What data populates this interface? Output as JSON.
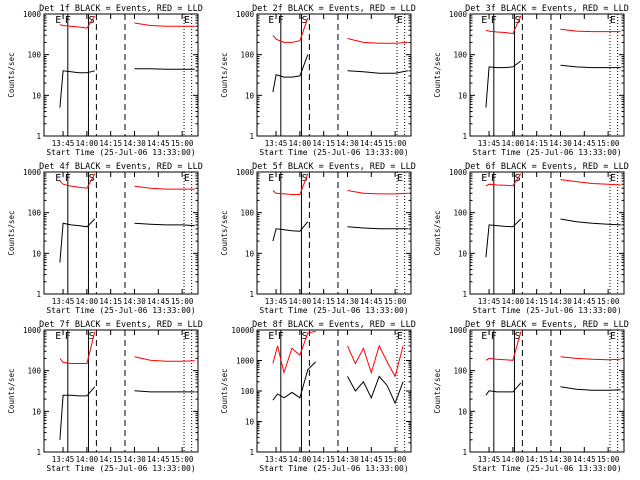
{
  "figure": {
    "xlabel": "Start Time (25-Jul-06 13:33:00)",
    "ylabel": "Counts/sec",
    "x_ticks": [
      "13:45",
      "14:00",
      "14:15",
      "14:30",
      "14:45",
      "15:00"
    ],
    "y_ticks_3dec": [
      "1",
      "10",
      "100",
      "1000"
    ],
    "y_ticks_4dec": [
      "1",
      "10",
      "100",
      "1000",
      "10000"
    ],
    "markers": [
      "E",
      "F",
      "S",
      "E"
    ],
    "colors": {
      "events": "#000000",
      "lld": "#ff0000"
    }
  },
  "chart_data": [
    {
      "type": "line",
      "title": "Det 1f BLACK = Events, RED = LLD",
      "ylim": [
        1,
        1000
      ],
      "yscale": "log",
      "xlim": [
        "13:33",
        "15:10"
      ],
      "series": [
        {
          "name": "Events",
          "x": [
            "13:43",
            "13:45",
            "13:50",
            "13:55",
            "14:00",
            "14:05",
            "14:24",
            "14:30",
            "14:40",
            "14:50",
            "15:00",
            "15:08"
          ],
          "values": [
            5,
            40,
            38,
            36,
            36,
            40,
            null,
            45,
            45,
            44,
            44,
            44
          ]
        },
        {
          "name": "LLD",
          "x": [
            "13:43",
            "13:45",
            "13:50",
            "13:55",
            "14:00",
            "14:05",
            "14:24",
            "14:30",
            "14:40",
            "14:50",
            "15:00",
            "15:08"
          ],
          "values": [
            550,
            520,
            500,
            480,
            450,
            900,
            null,
            600,
            520,
            500,
            500,
            500
          ]
        }
      ]
    },
    {
      "type": "line",
      "title": "Det 2f BLACK = Events, RED = LLD",
      "ylim": [
        1,
        1000
      ],
      "yscale": "log",
      "xlim": [
        "13:33",
        "15:10"
      ],
      "series": [
        {
          "name": "Events",
          "x": [
            "13:43",
            "13:45",
            "13:50",
            "13:55",
            "14:00",
            "14:05",
            "14:24",
            "14:30",
            "14:40",
            "14:50",
            "15:00",
            "15:08"
          ],
          "values": [
            12,
            32,
            28,
            28,
            30,
            100,
            null,
            40,
            38,
            35,
            35,
            40
          ]
        },
        {
          "name": "LLD",
          "x": [
            "13:43",
            "13:45",
            "13:50",
            "13:55",
            "14:00",
            "14:05",
            "14:24",
            "14:30",
            "14:40",
            "14:50",
            "15:00",
            "15:08"
          ],
          "values": [
            300,
            240,
            200,
            200,
            220,
            800,
            null,
            250,
            200,
            190,
            190,
            200
          ]
        }
      ]
    },
    {
      "type": "line",
      "title": "Det 3f BLACK = Events, RED = LLD",
      "ylim": [
        1,
        1000
      ],
      "yscale": "log",
      "xlim": [
        "13:33",
        "15:10"
      ],
      "series": [
        {
          "name": "Events",
          "x": [
            "13:43",
            "13:45",
            "13:50",
            "13:55",
            "14:00",
            "14:05",
            "14:24",
            "14:30",
            "14:40",
            "14:50",
            "15:00",
            "15:08"
          ],
          "values": [
            5,
            50,
            48,
            48,
            50,
            70,
            null,
            55,
            50,
            48,
            48,
            48
          ]
        },
        {
          "name": "LLD",
          "x": [
            "13:43",
            "13:45",
            "13:50",
            "13:55",
            "14:00",
            "14:05",
            "14:24",
            "14:30",
            "14:40",
            "14:50",
            "15:00",
            "15:08"
          ],
          "values": [
            400,
            380,
            360,
            350,
            330,
            900,
            null,
            420,
            380,
            370,
            370,
            370
          ]
        }
      ]
    },
    {
      "type": "line",
      "title": "Det 4f BLACK = Events, RED = LLD",
      "ylim": [
        1,
        1000
      ],
      "yscale": "log",
      "xlim": [
        "13:33",
        "15:10"
      ],
      "series": [
        {
          "name": "Events",
          "x": [
            "13:43",
            "13:45",
            "13:50",
            "13:55",
            "14:00",
            "14:05",
            "14:24",
            "14:30",
            "14:40",
            "14:50",
            "15:00",
            "15:08"
          ],
          "values": [
            6,
            55,
            50,
            48,
            45,
            70,
            null,
            55,
            52,
            50,
            50,
            48
          ]
        },
        {
          "name": "LLD",
          "x": [
            "13:43",
            "13:45",
            "13:50",
            "13:55",
            "14:00",
            "14:05",
            "14:24",
            "14:30",
            "14:40",
            "14:50",
            "15:00",
            "15:08"
          ],
          "values": [
            600,
            500,
            450,
            420,
            400,
            900,
            null,
            450,
            400,
            380,
            380,
            380
          ]
        }
      ]
    },
    {
      "type": "line",
      "title": "Det 5f BLACK = Events, RED = LLD",
      "ylim": [
        1,
        1000
      ],
      "yscale": "log",
      "xlim": [
        "13:33",
        "15:10"
      ],
      "series": [
        {
          "name": "Events",
          "x": [
            "13:43",
            "13:45",
            "13:50",
            "13:55",
            "14:00",
            "14:05",
            "14:24",
            "14:30",
            "14:40",
            "14:50",
            "15:00",
            "15:08"
          ],
          "values": [
            20,
            40,
            38,
            36,
            35,
            60,
            null,
            45,
            42,
            40,
            40,
            40
          ]
        },
        {
          "name": "LLD",
          "x": [
            "13:43",
            "13:45",
            "13:50",
            "13:55",
            "14:00",
            "14:05",
            "14:24",
            "14:30",
            "14:40",
            "14:50",
            "15:00",
            "15:08"
          ],
          "values": [
            350,
            300,
            290,
            280,
            280,
            900,
            null,
            350,
            300,
            290,
            290,
            300
          ]
        }
      ]
    },
    {
      "type": "line",
      "title": "Det 6f BLACK = Events, RED = LLD",
      "ylim": [
        1,
        1000
      ],
      "yscale": "log",
      "xlim": [
        "13:33",
        "15:10"
      ],
      "series": [
        {
          "name": "Events",
          "x": [
            "13:43",
            "13:45",
            "13:50",
            "13:55",
            "14:00",
            "14:05",
            "14:24",
            "14:30",
            "14:40",
            "14:50",
            "15:00",
            "15:08"
          ],
          "values": [
            8,
            50,
            48,
            46,
            45,
            70,
            null,
            70,
            60,
            55,
            52,
            50
          ]
        },
        {
          "name": "LLD",
          "x": [
            "13:43",
            "13:45",
            "13:50",
            "13:55",
            "14:00",
            "14:05",
            "14:24",
            "14:30",
            "14:40",
            "14:50",
            "15:00",
            "15:08"
          ],
          "values": [
            450,
            500,
            480,
            470,
            460,
            900,
            null,
            650,
            580,
            520,
            500,
            480
          ]
        }
      ]
    },
    {
      "type": "line",
      "title": "Det 7f BLACK = Events, RED = LLD",
      "ylim": [
        1,
        1000
      ],
      "yscale": "log",
      "xlim": [
        "13:33",
        "15:10"
      ],
      "series": [
        {
          "name": "Events",
          "x": [
            "13:43",
            "13:45",
            "13:50",
            "13:55",
            "14:00",
            "14:05",
            "14:24",
            "14:30",
            "14:40",
            "14:50",
            "15:00",
            "15:08"
          ],
          "values": [
            2,
            25,
            25,
            24,
            24,
            40,
            null,
            32,
            30,
            30,
            30,
            30
          ]
        },
        {
          "name": "LLD",
          "x": [
            "13:43",
            "13:45",
            "13:50",
            "13:55",
            "14:00",
            "14:05",
            "14:24",
            "14:30",
            "14:40",
            "14:50",
            "15:00",
            "15:08"
          ],
          "values": [
            200,
            160,
            150,
            150,
            150,
            900,
            null,
            220,
            180,
            170,
            170,
            175
          ]
        }
      ]
    },
    {
      "type": "line",
      "title": "Det 8f BLACK = Events, RED = LLD",
      "ylim": [
        1,
        10000
      ],
      "yscale": "log",
      "xlim": [
        "13:33",
        "15:10"
      ],
      "series": [
        {
          "name": "Events",
          "x": [
            "13:43",
            "13:46",
            "13:50",
            "13:55",
            "14:00",
            "14:05",
            "14:10",
            "14:24",
            "14:30",
            "14:35",
            "14:40",
            "14:45",
            "14:50",
            "14:55",
            "15:00",
            "15:05"
          ],
          "values": [
            50,
            80,
            60,
            90,
            60,
            500,
            900,
            null,
            300,
            100,
            200,
            60,
            300,
            150,
            40,
            200
          ]
        },
        {
          "name": "LLD",
          "x": [
            "13:43",
            "13:46",
            "13:50",
            "13:55",
            "14:00",
            "14:05",
            "14:10",
            "14:24",
            "14:30",
            "14:35",
            "14:40",
            "14:45",
            "14:50",
            "14:55",
            "15:00",
            "15:05"
          ],
          "values": [
            800,
            3000,
            400,
            2500,
            1500,
            8000,
            9000,
            null,
            3000,
            800,
            2500,
            400,
            3000,
            900,
            300,
            3000
          ]
        }
      ]
    },
    {
      "type": "line",
      "title": "Det 9f BLACK = Events, RED = LLD",
      "ylim": [
        1,
        1000
      ],
      "yscale": "log",
      "xlim": [
        "13:33",
        "15:10"
      ],
      "series": [
        {
          "name": "Events",
          "x": [
            "13:43",
            "13:45",
            "13:50",
            "13:55",
            "14:00",
            "14:05",
            "14:24",
            "14:30",
            "14:40",
            "14:50",
            "15:00",
            "15:08"
          ],
          "values": [
            25,
            32,
            30,
            30,
            30,
            50,
            null,
            40,
            35,
            33,
            33,
            34
          ]
        },
        {
          "name": "LLD",
          "x": [
            "13:43",
            "13:45",
            "13:50",
            "13:55",
            "14:00",
            "14:05",
            "14:24",
            "14:30",
            "14:40",
            "14:50",
            "15:00",
            "15:08"
          ],
          "values": [
            180,
            200,
            190,
            185,
            180,
            900,
            null,
            220,
            200,
            190,
            185,
            190
          ]
        }
      ]
    }
  ]
}
